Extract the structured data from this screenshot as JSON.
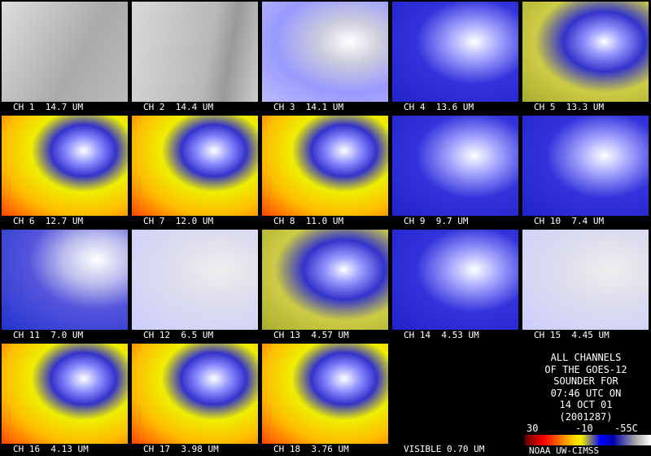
{
  "panels": [
    "CH 1  14.7 UM",
    "CH 2  14.4 UM",
    "CH 3  14.1 UM",
    "CH 4  13.6 UM",
    "CH 5  13.3 UM",
    "CH 6  12.7 UM",
    "CH 7  12.0 UM",
    "CH 8  11.0 UM",
    "CH 9  9.7 UM",
    "CH 10  7.4 UM",
    "CH 11  7.0 UM",
    "CH 12  6.5 UM",
    "CH 13  4.57 UM",
    "CH 14  4.53 UM",
    "CH 15  4.45 UM",
    "CH 16  4.13 UM",
    "CH 17  3.98 UM",
    "CH 18  3.76 UM",
    "VISIBLE 0.70 UM"
  ],
  "info": [
    "ALL CHANNELS",
    "OF THE GOES-12",
    "SOUNDER FOR",
    "07:46 UTC ON",
    "14 OCT 01",
    "(2001287)"
  ],
  "colorbar": {
    "labels": [
      "30",
      "-10",
      "-55C"
    ],
    "credit": "NOAA UW-CIMSS"
  }
}
